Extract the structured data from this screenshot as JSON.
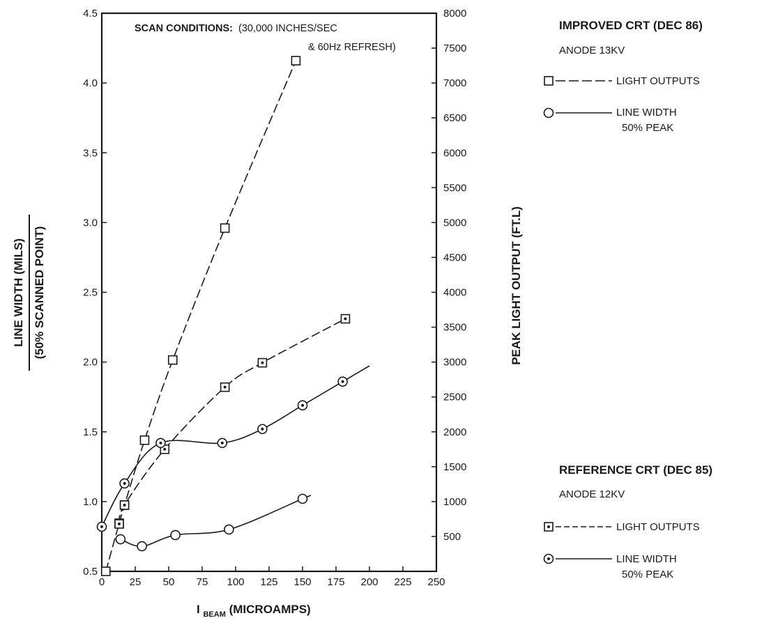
{
  "chart_data": {
    "type": "line",
    "annotation": {
      "bold": "SCAN CONDITIONS:",
      "line1": "(30,000 INCHES/SEC",
      "line2": "& 60Hz REFRESH)"
    },
    "xlabel": {
      "prefix": "I",
      "sub": "BEAM",
      "suffix": " (MICROAMPS)"
    },
    "ylabel_left": {
      "line1": "LINE WIDTH (MILS)",
      "line2": "(50% SCANNED POINT)"
    },
    "ylabel_right": "PEAK LIGHT OUTPUT (FT.L)",
    "xlim": [
      0,
      250
    ],
    "x_ticks": [
      0,
      25,
      50,
      75,
      100,
      125,
      150,
      175,
      200,
      225,
      250
    ],
    "ylim_left": [
      0.5,
      4.5
    ],
    "y_ticks_left": [
      "0.5",
      "1.0",
      "1.5",
      "2.0",
      "2.5",
      "3.0",
      "3.5",
      "4.0",
      "4.5"
    ],
    "ylim_right": [
      0,
      8000
    ],
    "y_ticks_right": [
      500,
      1000,
      1500,
      2000,
      2500,
      3000,
      3500,
      4000,
      4500,
      5000,
      5500,
      6000,
      6500,
      7000,
      7500,
      8000
    ],
    "legend": {
      "improved": {
        "title": "IMPROVED CRT (DEC 86)",
        "anode": "ANODE 13KV",
        "light": "LIGHT OUTPUTS",
        "width_line1": "LINE WIDTH",
        "width_line2": "50% PEAK"
      },
      "reference": {
        "title": "REFERENCE CRT (DEC 85)",
        "anode": "ANODE 12KV",
        "light": "LIGHT OUTPUTS",
        "width_line1": "LINE WIDTH",
        "width_line2": "50% PEAK"
      }
    },
    "series": [
      {
        "axis": "right",
        "marker": "square",
        "dash": true,
        "points": [
          [
            3,
            0
          ],
          [
            13,
            690
          ],
          [
            17,
            950
          ],
          [
            32,
            1880
          ],
          [
            53,
            3030
          ],
          [
            92,
            4920
          ],
          [
            145,
            7320
          ]
        ],
        "curve_end": 145
      },
      {
        "axis": "right",
        "marker": "square-dot",
        "dash": true,
        "points": [
          [
            13,
            680
          ],
          [
            17,
            950
          ],
          [
            47,
            1750
          ],
          [
            92,
            2640
          ],
          [
            120,
            2990
          ],
          [
            182,
            3620
          ]
        ],
        "curve_end": 182
      },
      {
        "axis": "left",
        "marker": "circle",
        "dash": false,
        "points": [
          [
            14,
            0.73
          ],
          [
            30,
            0.68
          ],
          [
            55,
            0.76
          ],
          [
            95,
            0.8
          ],
          [
            150,
            1.02
          ]
        ],
        "curve_end": 155
      },
      {
        "axis": "left",
        "marker": "circle-dot",
        "dash": false,
        "points": [
          [
            0,
            0.82
          ],
          [
            17,
            1.13
          ],
          [
            44,
            1.42
          ],
          [
            90,
            1.42
          ],
          [
            120,
            1.52
          ],
          [
            150,
            1.69
          ],
          [
            180,
            1.86
          ]
        ],
        "curve_end": 200
      }
    ]
  }
}
